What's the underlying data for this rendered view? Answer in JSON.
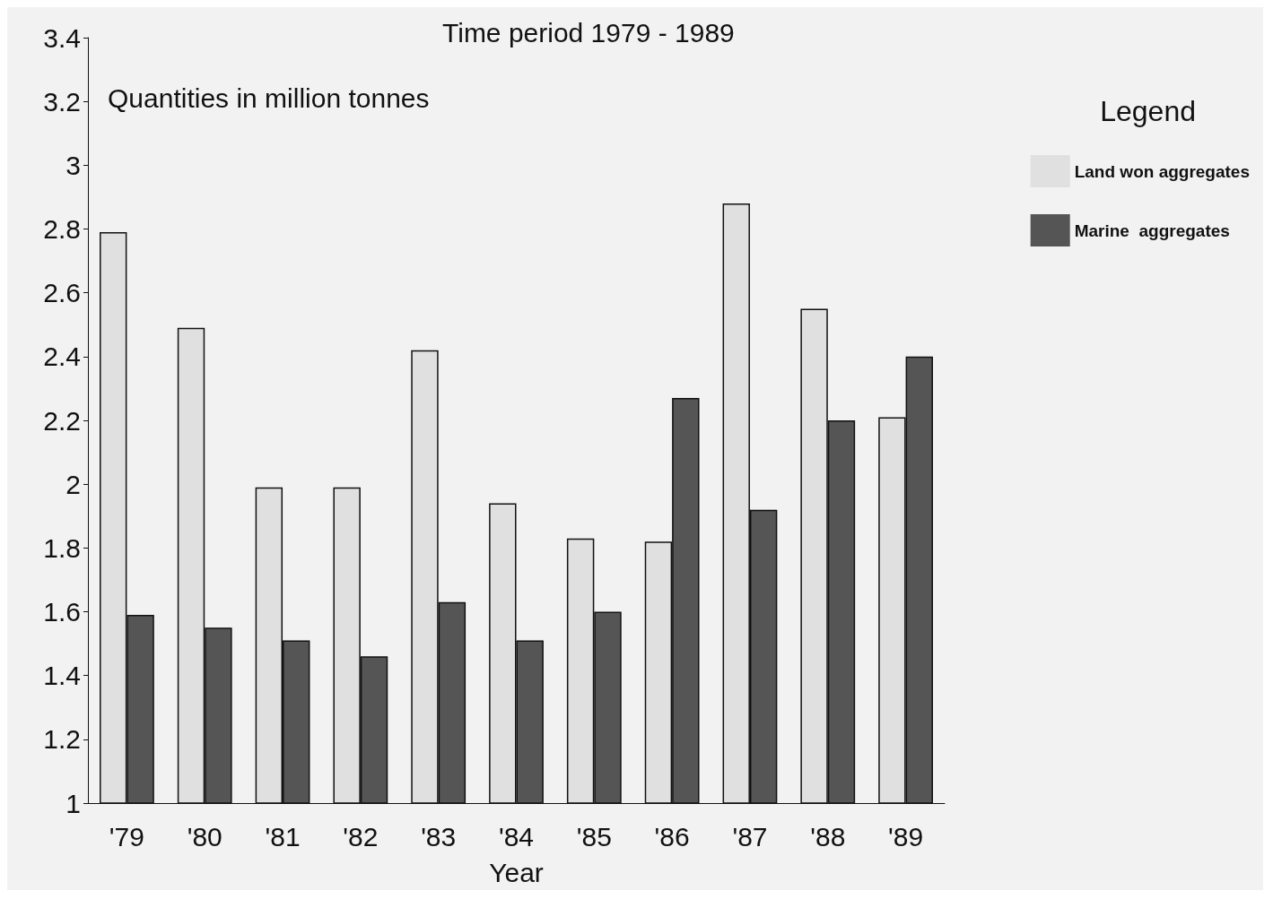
{
  "chart_data": {
    "type": "bar",
    "title": "Time period 1979 - 1989",
    "subtitle": "Quantities in million tonnes",
    "xlabel": "Year",
    "legend_title": "Legend",
    "categories": [
      "'79",
      "'80",
      "'81",
      "'82",
      "'83",
      "'84",
      "'85",
      "'86",
      "'87",
      "'88",
      "'89"
    ],
    "series": [
      {
        "name": "Land won aggregates",
        "color": "#e0e0e0",
        "values": [
          2.79,
          2.49,
          1.99,
          1.99,
          2.42,
          1.94,
          1.83,
          1.82,
          2.88,
          2.55,
          2.21
        ]
      },
      {
        "name": "Marine  aggregates",
        "color": "#555555",
        "values": [
          1.59,
          1.55,
          1.51,
          1.46,
          1.63,
          1.51,
          1.6,
          2.27,
          1.92,
          2.2,
          2.4
        ]
      }
    ],
    "ylim": [
      1,
      3.4
    ],
    "yticks": [
      1,
      1.2,
      1.4,
      1.6,
      1.8,
      2,
      2.2,
      2.4,
      2.6,
      2.8,
      3,
      3.2,
      3.4
    ],
    "grid": false,
    "legend": "right"
  }
}
